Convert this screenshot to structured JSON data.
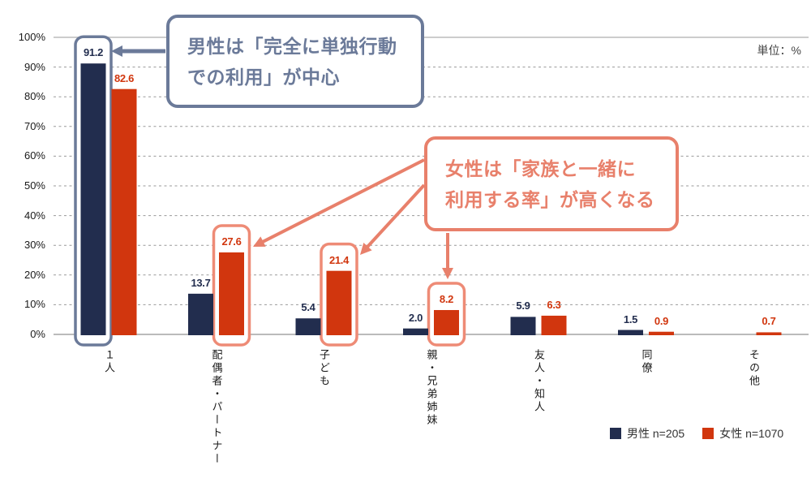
{
  "unit_label": "単位：%",
  "annotations": {
    "male_callout": {
      "text_line1": "男性は「完全に単独行動",
      "text_line2": "での利用」が中心",
      "color": "#6b7a99",
      "target": "1人（男性バー）"
    },
    "female_callout": {
      "text_line1": "女性は「家族と一緒に",
      "text_line2": "利用する率」が高くなる",
      "color": "#e8806b",
      "targets": [
        "配偶者・パートナー（女性バー）",
        "子ども（女性バー）",
        "親・兄弟姉妹（女性バー）"
      ]
    }
  },
  "chart_data": {
    "type": "bar",
    "title": "",
    "xlabel": "",
    "ylabel": "%",
    "ylim": [
      0,
      100
    ],
    "ytick_step": 10,
    "yticks": [
      "0%",
      "10%",
      "20%",
      "30%",
      "40%",
      "50%",
      "60%",
      "70%",
      "80%",
      "90%",
      "100%"
    ],
    "grid": "horizontal-dashed",
    "legend_position": "bottom-right",
    "categories": [
      "1人",
      "配偶者・パートナー",
      "子ども",
      "親・兄弟姉妹",
      "友人・知人",
      "同僚",
      "その他"
    ],
    "series": [
      {
        "key": "male",
        "name": "男性 n=205",
        "color": "#222d4e",
        "values": [
          91.2,
          13.7,
          5.4,
          2.0,
          5.9,
          1.5,
          null
        ],
        "highlight_indices": [
          0
        ],
        "highlight_color": "#6b7a99"
      },
      {
        "key": "female",
        "name": "女性 n=1070",
        "color": "#d1360e",
        "values": [
          82.6,
          27.6,
          21.4,
          8.2,
          6.3,
          0.9,
          0.7
        ],
        "highlight_indices": [
          1,
          2,
          3
        ],
        "highlight_color": "#ee8b76"
      }
    ],
    "gridline_color": "#999999",
    "axis_line_color": "#bbbbbb"
  }
}
